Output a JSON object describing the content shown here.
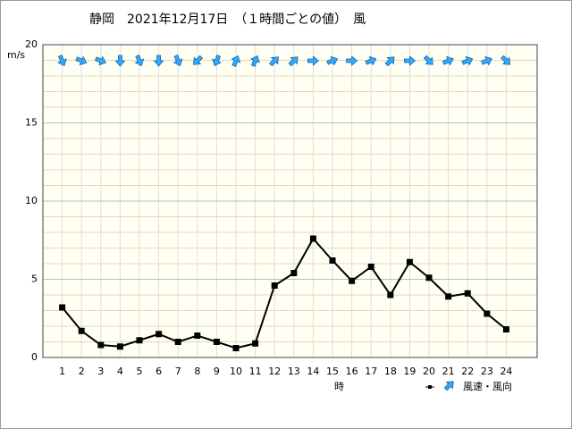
{
  "chart_data": {
    "type": "line",
    "title": "静岡　2021年12月17日　（１時間ごとの値）　風",
    "y_unit": "m/s",
    "x_label": "時",
    "legend_label": "風速・風向",
    "categories": [
      "1",
      "2",
      "3",
      "4",
      "5",
      "6",
      "7",
      "8",
      "9",
      "10",
      "11",
      "12",
      "13",
      "14",
      "15",
      "16",
      "17",
      "18",
      "19",
      "20",
      "21",
      "22",
      "23",
      "24"
    ],
    "series": [
      {
        "name": "風速",
        "color": "#000000",
        "values": [
          3.2,
          1.7,
          0.8,
          0.7,
          1.1,
          1.5,
          1.0,
          1.4,
          1.0,
          0.6,
          0.9,
          4.6,
          5.4,
          7.6,
          6.2,
          4.9,
          5.8,
          4.0,
          6.1,
          5.1,
          3.9,
          4.1,
          2.8,
          1.8
        ]
      }
    ],
    "wind_heading_deg": [
      157.5,
      112.5,
      112.5,
      180,
      157.5,
      180,
      157.5,
      225,
      202.5,
      22.5,
      22.5,
      45,
      45,
      90,
      67.5,
      90,
      67.5,
      45,
      90,
      135,
      67.5,
      67.5,
      67.5,
      135
    ],
    "arrow_color": "#33aaff",
    "ylim": [
      0,
      20
    ],
    "yticks": [
      0,
      5,
      10,
      15,
      20
    ],
    "yminor": [
      1,
      2,
      3,
      4,
      6,
      7,
      8,
      9,
      11,
      12,
      13,
      14,
      16,
      17,
      18,
      19
    ],
    "grid": true
  }
}
